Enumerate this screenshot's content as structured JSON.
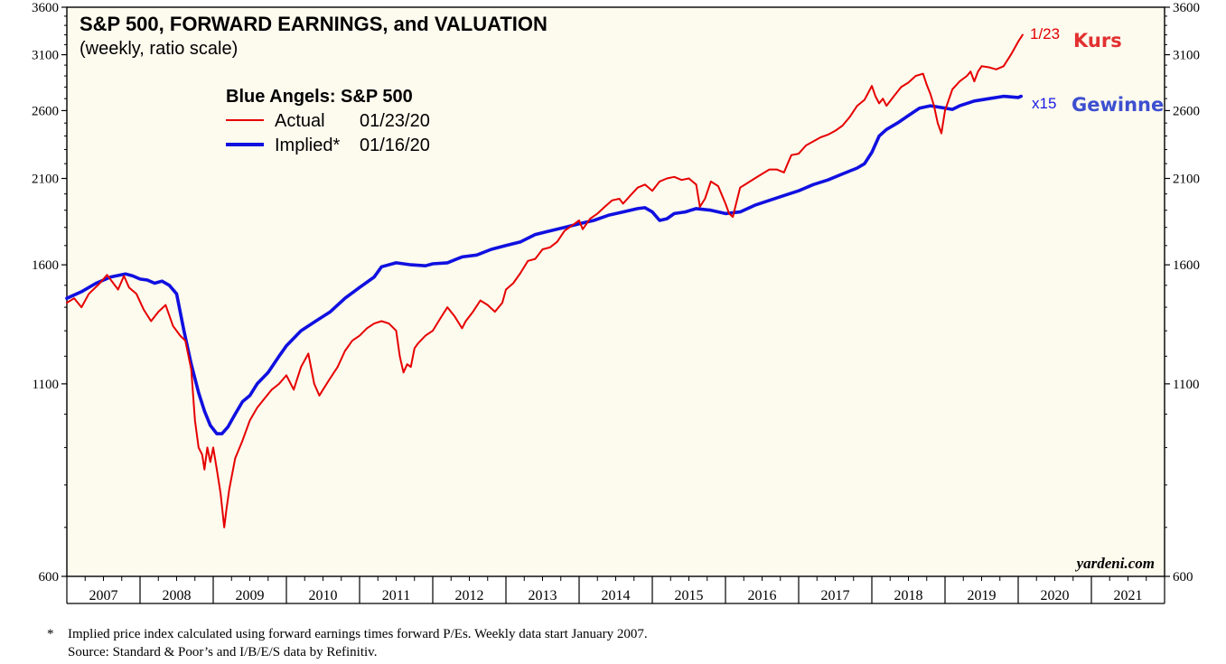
{
  "chart_data": {
    "type": "line",
    "title": "S&P 500, FORWARD EARNINGS, and VALUATION",
    "subtitle": "(weekly, ratio scale)",
    "legend_title": "Blue Angels: S&P 500",
    "legend": [
      {
        "name": "Actual",
        "date": "01/23/20",
        "color": "#e60000"
      },
      {
        "name": "Implied*",
        "date": "01/16/20",
        "color": "#1010e0"
      }
    ],
    "y_scale": "log",
    "ylim": [
      600,
      3600
    ],
    "yticks": [
      "3600",
      "3100",
      "2600",
      "2100",
      "1600",
      "1100",
      "600"
    ],
    "ytick_values": [
      3600,
      3100,
      2600,
      2100,
      1600,
      1100,
      600
    ],
    "xlim": [
      2007.0,
      2022.0
    ],
    "x_categories": [
      "2007",
      "2008",
      "2009",
      "2010",
      "2011",
      "2012",
      "2013",
      "2014",
      "2015",
      "2016",
      "2017",
      "2018",
      "2019",
      "2020",
      "2021"
    ],
    "series": [
      {
        "name": "Actual",
        "color": "#e60000",
        "x": [
          2007.0,
          2007.1,
          2007.2,
          2007.3,
          2007.45,
          2007.55,
          2007.7,
          2007.78,
          2007.85,
          2007.95,
          2008.05,
          2008.15,
          2008.25,
          2008.35,
          2008.45,
          2008.55,
          2008.62,
          2008.7,
          2008.75,
          2008.8,
          2008.85,
          2008.88,
          2008.92,
          2008.96,
          2009.0,
          2009.05,
          2009.1,
          2009.15,
          2009.18,
          2009.22,
          2009.3,
          2009.4,
          2009.5,
          2009.6,
          2009.7,
          2009.8,
          2009.9,
          2010.0,
          2010.1,
          2010.2,
          2010.3,
          2010.38,
          2010.45,
          2010.5,
          2010.6,
          2010.7,
          2010.8,
          2010.9,
          2011.0,
          2011.1,
          2011.2,
          2011.3,
          2011.4,
          2011.5,
          2011.55,
          2011.6,
          2011.65,
          2011.7,
          2011.75,
          2011.8,
          2011.9,
          2012.0,
          2012.1,
          2012.2,
          2012.3,
          2012.4,
          2012.45,
          2012.55,
          2012.65,
          2012.75,
          2012.85,
          2012.95,
          2013.0,
          2013.1,
          2013.2,
          2013.3,
          2013.4,
          2013.5,
          2013.6,
          2013.7,
          2013.8,
          2013.9,
          2014.0,
          2014.05,
          2014.15,
          2014.25,
          2014.35,
          2014.45,
          2014.55,
          2014.6,
          2014.7,
          2014.8,
          2014.9,
          2015.0,
          2015.1,
          2015.2,
          2015.3,
          2015.4,
          2015.5,
          2015.6,
          2015.65,
          2015.72,
          2015.8,
          2015.9,
          2016.0,
          2016.05,
          2016.1,
          2016.15,
          2016.2,
          2016.3,
          2016.4,
          2016.5,
          2016.6,
          2016.7,
          2016.8,
          2016.85,
          2016.9,
          2017.0,
          2017.1,
          2017.2,
          2017.3,
          2017.4,
          2017.5,
          2017.6,
          2017.7,
          2017.8,
          2017.9,
          2018.0,
          2018.05,
          2018.1,
          2018.15,
          2018.2,
          2018.3,
          2018.4,
          2018.5,
          2018.6,
          2018.7,
          2018.75,
          2018.8,
          2018.85,
          2018.9,
          2018.95,
          2019.0,
          2019.1,
          2019.2,
          2019.3,
          2019.35,
          2019.4,
          2019.45,
          2019.5,
          2019.6,
          2019.7,
          2019.8,
          2019.9,
          2020.0,
          2020.06
        ],
        "values": [
          1420,
          1440,
          1400,
          1460,
          1510,
          1550,
          1480,
          1545,
          1490,
          1460,
          1390,
          1340,
          1380,
          1410,
          1320,
          1280,
          1260,
          1150,
          980,
          900,
          880,
          840,
          900,
          860,
          900,
          840,
          780,
          700,
          740,
          790,
          870,
          920,
          980,
          1020,
          1050,
          1080,
          1100,
          1130,
          1080,
          1160,
          1210,
          1100,
          1060,
          1080,
          1120,
          1160,
          1220,
          1260,
          1280,
          1310,
          1330,
          1340,
          1330,
          1300,
          1200,
          1140,
          1170,
          1160,
          1230,
          1250,
          1280,
          1300,
          1350,
          1400,
          1360,
          1310,
          1340,
          1380,
          1430,
          1410,
          1380,
          1420,
          1480,
          1510,
          1560,
          1620,
          1630,
          1680,
          1690,
          1720,
          1780,
          1810,
          1840,
          1790,
          1850,
          1880,
          1920,
          1960,
          1970,
          1940,
          1990,
          2040,
          2060,
          2020,
          2080,
          2100,
          2110,
          2090,
          2100,
          2060,
          1920,
          1970,
          2080,
          2050,
          1940,
          1880,
          1860,
          1950,
          2040,
          2070,
          2100,
          2130,
          2160,
          2160,
          2140,
          2200,
          2260,
          2270,
          2330,
          2360,
          2390,
          2410,
          2440,
          2480,
          2550,
          2640,
          2690,
          2810,
          2720,
          2660,
          2700,
          2640,
          2720,
          2800,
          2840,
          2900,
          2920,
          2820,
          2740,
          2640,
          2500,
          2420,
          2600,
          2780,
          2850,
          2900,
          2940,
          2850,
          2940,
          2990,
          2980,
          2960,
          2990,
          3100,
          3230,
          3300
        ]
      },
      {
        "name": "Implied*",
        "color": "#1010e0",
        "x": [
          2007.0,
          2007.2,
          2007.4,
          2007.6,
          2007.8,
          2007.9,
          2008.0,
          2008.1,
          2008.2,
          2008.3,
          2008.4,
          2008.5,
          2008.6,
          2008.7,
          2008.8,
          2008.88,
          2008.96,
          2009.05,
          2009.12,
          2009.2,
          2009.3,
          2009.4,
          2009.5,
          2009.6,
          2009.75,
          2009.9,
          2010.0,
          2010.2,
          2010.4,
          2010.6,
          2010.8,
          2011.0,
          2011.2,
          2011.3,
          2011.5,
          2011.7,
          2011.9,
          2012.0,
          2012.2,
          2012.4,
          2012.6,
          2012.8,
          2013.0,
          2013.2,
          2013.4,
          2013.6,
          2013.8,
          2014.0,
          2014.2,
          2014.4,
          2014.6,
          2014.8,
          2014.9,
          2015.0,
          2015.1,
          2015.2,
          2015.3,
          2015.45,
          2015.6,
          2015.8,
          2016.0,
          2016.2,
          2016.4,
          2016.6,
          2016.8,
          2017.0,
          2017.2,
          2017.4,
          2017.6,
          2017.8,
          2017.9,
          2018.0,
          2018.1,
          2018.2,
          2018.35,
          2018.5,
          2018.65,
          2018.8,
          2018.9,
          2019.0,
          2019.1,
          2019.2,
          2019.4,
          2019.6,
          2019.8,
          2020.0,
          2020.04
        ],
        "values": [
          1440,
          1470,
          1510,
          1540,
          1555,
          1545,
          1530,
          1525,
          1510,
          1520,
          1500,
          1460,
          1300,
          1170,
          1070,
          1010,
          965,
          940,
          940,
          960,
          1000,
          1040,
          1060,
          1100,
          1140,
          1200,
          1240,
          1300,
          1340,
          1380,
          1440,
          1490,
          1540,
          1590,
          1610,
          1600,
          1595,
          1605,
          1610,
          1640,
          1650,
          1680,
          1700,
          1720,
          1760,
          1780,
          1800,
          1820,
          1840,
          1870,
          1890,
          1910,
          1915,
          1890,
          1840,
          1850,
          1880,
          1890,
          1910,
          1900,
          1880,
          1890,
          1930,
          1960,
          1990,
          2020,
          2060,
          2090,
          2130,
          2170,
          2200,
          2280,
          2400,
          2450,
          2500,
          2560,
          2620,
          2640,
          2630,
          2620,
          2610,
          2640,
          2680,
          2700,
          2720,
          2710,
          2720
        ]
      }
    ],
    "annotations": {
      "actual_end_label": "1/23",
      "implied_end_label": "x15",
      "actual_tag": "Kurs",
      "implied_tag": "Gewinne"
    },
    "source_brand": "yardeni.com",
    "footnote_marker": "*",
    "footnote": "Implied price index calculated using forward earnings times forward P/Es. Weekly data start January 2007.",
    "source": "Source: Standard & Poor’s and I/B/E/S data by Refinitiv."
  }
}
